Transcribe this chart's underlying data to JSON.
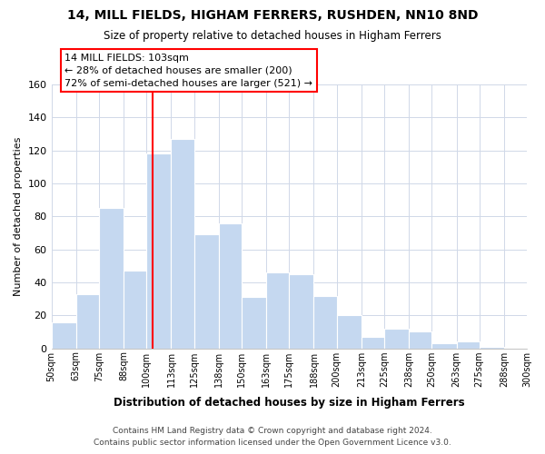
{
  "title": "14, MILL FIELDS, HIGHAM FERRERS, RUSHDEN, NN10 8ND",
  "subtitle": "Size of property relative to detached houses in Higham Ferrers",
  "xlabel": "Distribution of detached houses by size in Higham Ferrers",
  "ylabel": "Number of detached properties",
  "bin_labels": [
    "50sqm",
    "63sqm",
    "75sqm",
    "88sqm",
    "100sqm",
    "113sqm",
    "125sqm",
    "138sqm",
    "150sqm",
    "163sqm",
    "175sqm",
    "188sqm",
    "200sqm",
    "213sqm",
    "225sqm",
    "238sqm",
    "250sqm",
    "263sqm",
    "275sqm",
    "288sqm",
    "300sqm"
  ],
  "bar_values": [
    16,
    33,
    85,
    47,
    118,
    127,
    69,
    76,
    31,
    46,
    45,
    32,
    20,
    7,
    12,
    10,
    3,
    4,
    1,
    0,
    0
  ],
  "bar_color": "#c5d8f0",
  "vline_x": 103,
  "vline_color": "red",
  "ylim": [
    0,
    160
  ],
  "yticks": [
    0,
    20,
    40,
    60,
    80,
    100,
    120,
    140,
    160
  ],
  "annotation_title": "14 MILL FIELDS: 103sqm",
  "annotation_line1": "← 28% of detached houses are smaller (200)",
  "annotation_line2": "72% of semi-detached houses are larger (521) →",
  "footer1": "Contains HM Land Registry data © Crown copyright and database right 2024.",
  "footer2": "Contains public sector information licensed under the Open Government Licence v3.0.",
  "bin_edges": [
    50,
    63,
    75,
    88,
    100,
    113,
    125,
    138,
    150,
    163,
    175,
    188,
    200,
    213,
    225,
    238,
    250,
    263,
    275,
    288,
    300
  ]
}
